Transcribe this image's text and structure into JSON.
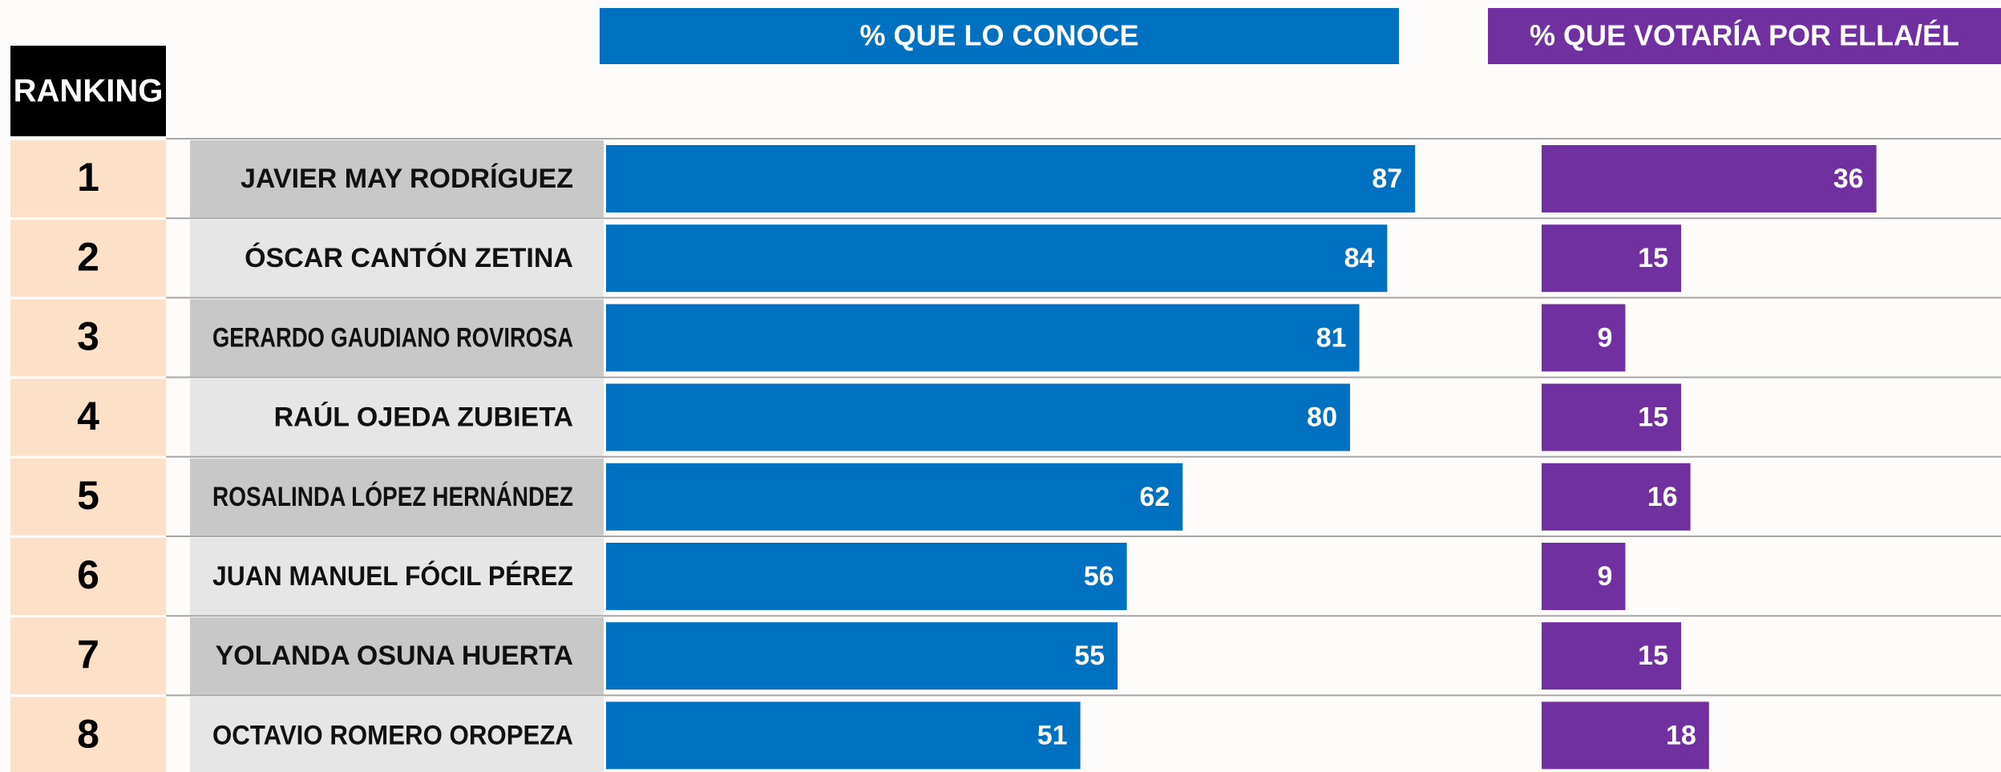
{
  "chart_data": {
    "type": "bar",
    "orientation": "horizontal",
    "rank_header": "RANKING",
    "ranks": [
      "1",
      "2",
      "3",
      "4",
      "5",
      "6",
      "7",
      "8"
    ],
    "categories": [
      "JAVIER MAY RODRÍGUEZ",
      "ÓSCAR CANTÓN ZETINA",
      "GERARDO GAUDIANO ROVIROSA",
      "RAÚL OJEDA ZUBIETA",
      "ROSALINDA LÓPEZ HERNÁNDEZ",
      "JUAN MANUEL FÓCIL PÉREZ",
      "YOLANDA OSUNA HUERTA",
      "OCTAVIO ROMERO OROPEZA"
    ],
    "series": [
      {
        "name": "% QUE LO CONOCE",
        "color": "#0070c0",
        "values": [
          87,
          84,
          81,
          80,
          62,
          56,
          55,
          51
        ]
      },
      {
        "name": "% QUE VOTARÍA POR ELLA/ÉL",
        "color": "#7030a0",
        "values": [
          36,
          15,
          9,
          15,
          16,
          9,
          15,
          18
        ]
      }
    ]
  }
}
